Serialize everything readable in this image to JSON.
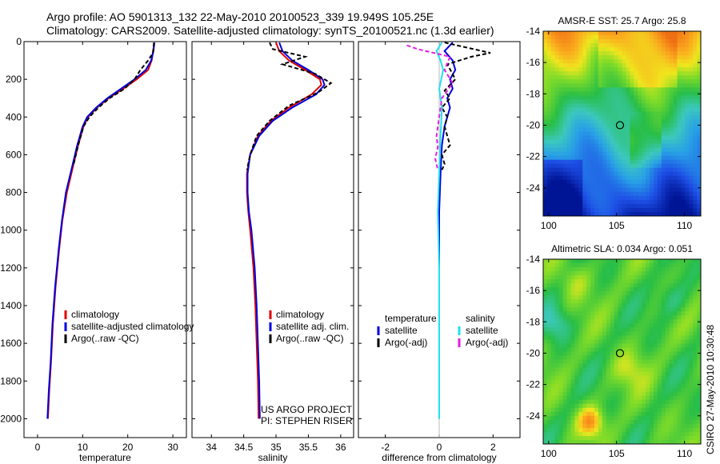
{
  "colors": {
    "climatology": "#e00000",
    "satellite": "#0000e0",
    "argo": "#000000",
    "sat_salinity": "#20e0f0",
    "argo_salinity": "#e020e0"
  },
  "title": {
    "line1": "Argo profile: AO 5901313_132 22-May-2010 20100523_339 19.949S 105.25E",
    "line2": "Climatology: CARS2009. Satellite-adjusted climatology: synTS_20100521.nc (1.3d earlier)"
  },
  "side_label": "CSIRO 27-May-2010 10:30:48",
  "project": {
    "line1": "US ARGO PROJECT",
    "line2": "PI: STEPHEN RISER"
  },
  "marker": {
    "lon": 105.25,
    "lat": -20.0
  },
  "chart_data": [
    {
      "id": "temperature",
      "type": "line",
      "xlabel": "temperature",
      "ylabel": "",
      "xlim": [
        -3,
        33
      ],
      "ylim": [
        2100,
        0
      ],
      "xticks": [
        0,
        10,
        20,
        30
      ],
      "yticks": [
        0,
        200,
        400,
        600,
        800,
        1000,
        1200,
        1400,
        1600,
        1800,
        2000
      ],
      "legend": [
        "climatology",
        "satellite-adjusted climatology",
        "Argo(..raw -QC)"
      ],
      "series": [
        {
          "name": "climatology",
          "color": "#e00000",
          "dash": "",
          "x": [
            25.9,
            25.6,
            25.3,
            24.5,
            22.0,
            19.0,
            15.8,
            13.2,
            11.2,
            10.2,
            9.0,
            8.0,
            6.5,
            5.5,
            4.8,
            4.0,
            3.4,
            3.0,
            2.6,
            2.3
          ],
          "y": [
            5,
            50,
            100,
            150,
            200,
            250,
            300,
            350,
            400,
            450,
            550,
            650,
            800,
            950,
            1100,
            1300,
            1500,
            1700,
            1850,
            2000
          ]
        },
        {
          "name": "satellite-adjusted climatology",
          "color": "#0000e0",
          "dash": "",
          "x": [
            25.9,
            25.7,
            25.2,
            24.0,
            21.5,
            18.5,
            15.5,
            13.0,
            11.0,
            10.0,
            8.8,
            7.8,
            6.3,
            5.4,
            4.7,
            3.9,
            3.3,
            2.9,
            2.5,
            2.2
          ],
          "y": [
            5,
            50,
            100,
            150,
            200,
            250,
            300,
            350,
            400,
            450,
            550,
            650,
            800,
            950,
            1100,
            1300,
            1500,
            1700,
            1850,
            2000
          ]
        },
        {
          "name": "Argo(..raw -QC)",
          "color": "#000000",
          "dash": "5,3",
          "x": [
            25.8,
            25.6,
            24.5,
            22.8,
            21.5,
            19.3,
            16.0,
            13.5,
            11.5,
            10.2,
            9.0,
            7.9
          ],
          "y": [
            5,
            60,
            100,
            150,
            200,
            250,
            300,
            350,
            400,
            450,
            550,
            660
          ]
        }
      ]
    },
    {
      "id": "salinity",
      "type": "line",
      "xlabel": "salinity",
      "ylabel": "",
      "xlim": [
        33.7,
        36.2
      ],
      "ylim": [
        2100,
        0
      ],
      "xticks": [
        34,
        34.5,
        35,
        35.5,
        36
      ],
      "yticks": [
        0,
        200,
        400,
        600,
        800,
        1000,
        1200,
        1400,
        1600,
        1800,
        2000
      ],
      "legend": [
        "climatology",
        "satellite adj. clim.",
        "Argo(..raw -QC)"
      ],
      "series": [
        {
          "name": "climatology",
          "color": "#e00000",
          "dash": "",
          "x": [
            35.0,
            35.05,
            35.2,
            35.45,
            35.68,
            35.7,
            35.55,
            35.2,
            34.92,
            34.72,
            34.6,
            34.55,
            34.55,
            34.57,
            34.6,
            34.65,
            34.68,
            34.7,
            34.72,
            34.73
          ],
          "y": [
            5,
            50,
            100,
            150,
            200,
            230,
            280,
            350,
            420,
            500,
            600,
            700,
            800,
            900,
            1000,
            1200,
            1400,
            1600,
            1800,
            2000
          ]
        },
        {
          "name": "satellite adj. clim.",
          "color": "#0000e0",
          "dash": "",
          "x": [
            35.05,
            35.1,
            35.25,
            35.5,
            35.72,
            35.75,
            35.62,
            35.25,
            34.95,
            34.74,
            34.6,
            34.56,
            34.56,
            34.58,
            34.62,
            34.67,
            34.7,
            34.72,
            34.74,
            34.75
          ],
          "y": [
            5,
            50,
            100,
            150,
            200,
            230,
            280,
            350,
            420,
            500,
            600,
            700,
            800,
            900,
            1000,
            1200,
            1400,
            1600,
            1800,
            2000
          ]
        },
        {
          "name": "Argo(..raw -QC)",
          "color": "#000000",
          "dash": "5,3",
          "x": [
            34.9,
            34.95,
            35.45,
            35.1,
            35.6,
            35.85,
            35.65,
            35.2,
            34.9,
            34.7,
            34.6,
            34.55
          ],
          "y": [
            5,
            40,
            80,
            120,
            170,
            220,
            270,
            340,
            420,
            500,
            600,
            680
          ]
        }
      ]
    },
    {
      "id": "difference",
      "type": "line",
      "xlabel": "difference from climatology",
      "ylabel": "",
      "xlim": [
        -3,
        3
      ],
      "ylim": [
        2100,
        0
      ],
      "xticks": [
        -2,
        0,
        2
      ],
      "yticks": [
        0,
        200,
        400,
        600,
        800,
        1000,
        1200,
        1400,
        1600,
        1800,
        2000
      ],
      "legend_groups": [
        {
          "title": "temperature",
          "items": [
            "satellite",
            "Argo(-adj)"
          ]
        },
        {
          "title": "salinity",
          "items": [
            "satellite",
            "Argo(-adj)"
          ]
        }
      ],
      "series": [
        {
          "name": "temperature satellite",
          "color": "#0000e0",
          "dash": "",
          "x": [
            0.5,
            0.2,
            0.5,
            0.6,
            0.4,
            0.5,
            0.3,
            0.4,
            0.2,
            0.1,
            0.05,
            0.0,
            0.0
          ],
          "y": [
            5,
            50,
            100,
            150,
            200,
            250,
            300,
            350,
            450,
            550,
            700,
            900,
            2000
          ]
        },
        {
          "name": "temperature Argo(-adj)",
          "color": "#000000",
          "dash": "5,3",
          "x": [
            0.2,
            1.9,
            1.2,
            0.3,
            0.6,
            0.2,
            0.4,
            0.1,
            0.3,
            0.2,
            0.4,
            0.1,
            0.2,
            0.1
          ],
          "y": [
            5,
            60,
            80,
            120,
            200,
            260,
            300,
            350,
            400,
            450,
            550,
            600,
            650,
            680
          ]
        },
        {
          "name": "salinity satellite",
          "color": "#20e0f0",
          "dash": "",
          "x": [
            0.1,
            -0.1,
            0.05,
            0.15,
            0.0,
            0.1,
            0.05,
            0.0,
            -0.05,
            0.0,
            0.0
          ],
          "y": [
            5,
            50,
            100,
            150,
            250,
            350,
            500,
            700,
            900,
            1200,
            2000
          ]
        },
        {
          "name": "salinity Argo(-adj)",
          "color": "#e020e0",
          "dash": "5,3",
          "x": [
            -1.2,
            -0.8,
            0.4,
            0.2,
            0.5,
            0.1,
            0.0,
            -0.1,
            -0.05,
            -0.15,
            -0.05
          ],
          "y": [
            20,
            40,
            80,
            150,
            220,
            300,
            400,
            500,
            560,
            620,
            680
          ]
        }
      ]
    },
    {
      "id": "sst_map",
      "type": "heatmap",
      "title": "AMSR-E SST: 25.7 Argo: 25.8",
      "xlim": [
        99.6,
        111.2
      ],
      "ylim": [
        -25.8,
        -14.0
      ],
      "xticks": [
        100,
        105,
        110
      ],
      "yticks": [
        -14,
        -16,
        -18,
        -20,
        -22,
        -24
      ]
    },
    {
      "id": "sla_map",
      "type": "heatmap",
      "title": "Altimetric SLA: 0.034 Argo: 0.051",
      "xlim": [
        99.6,
        111.2
      ],
      "ylim": [
        -25.8,
        -14.0
      ],
      "xticks": [
        100,
        105,
        110
      ],
      "yticks": [
        -14,
        -16,
        -18,
        -20,
        -22,
        -24
      ]
    }
  ]
}
